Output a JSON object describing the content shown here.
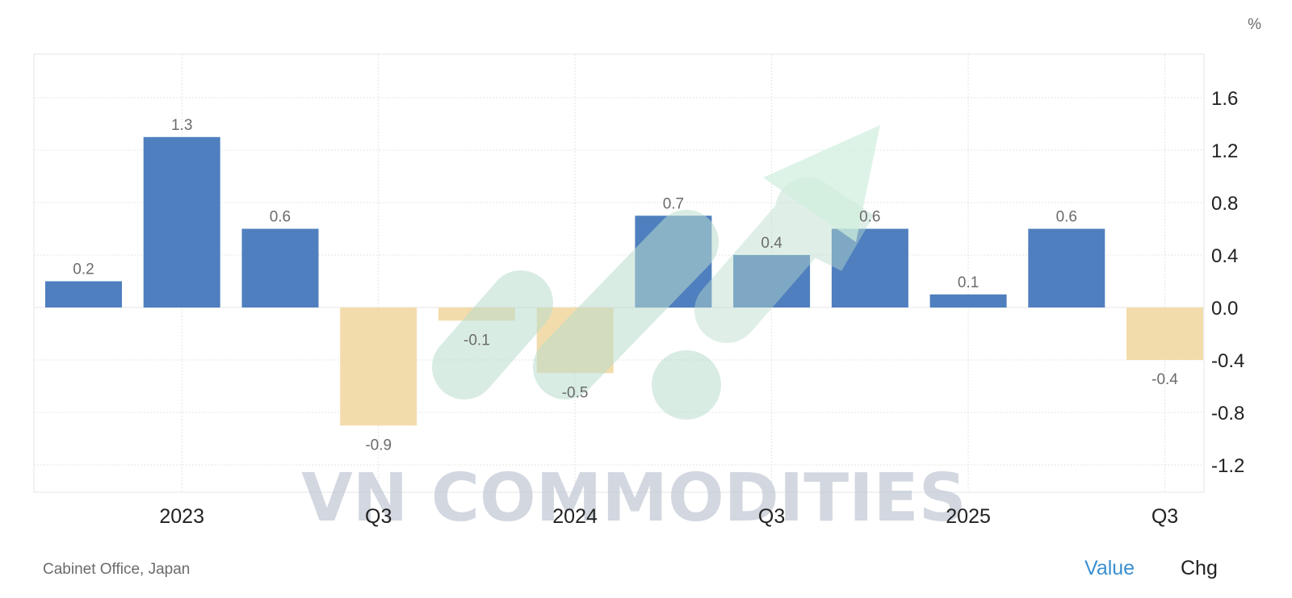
{
  "chart_data": {
    "type": "bar",
    "unit_label": "%",
    "x_tick_labels": [
      "2023",
      "Q3",
      "2024",
      "Q3",
      "2025",
      "Q3"
    ],
    "values": [
      0.2,
      1.3,
      0.6,
      -0.9,
      -0.1,
      -0.5,
      0.7,
      0.4,
      0.6,
      0.1,
      0.6,
      -0.4
    ],
    "data_labels": [
      "0.2",
      "1.3",
      "0.6",
      "-0.9",
      "-0.1",
      "-0.5",
      "0.7",
      "0.4",
      "0.6",
      "0.1",
      "0.6",
      "-0.4"
    ],
    "y_ticks": [
      "1.6",
      "1.2",
      "0.8",
      "0.4",
      "0.0",
      "-0.4",
      "-0.8",
      "-1.2"
    ],
    "y_tick_values": [
      1.6,
      1.2,
      0.8,
      0.4,
      0.0,
      -0.4,
      -0.8,
      -1.2
    ],
    "ylim": [
      -1.5,
      1.9
    ],
    "grid": true,
    "colors": {
      "positive": "#4f7fbe",
      "negative": "#f3dcac",
      "label": "#6b6b6b",
      "grid": "#e4e4e4"
    }
  },
  "source": "Cabinet Office, Japan",
  "toggle": {
    "value_label": "Value",
    "chg_label": "Chg"
  },
  "watermark": "VN COMMODITIES"
}
